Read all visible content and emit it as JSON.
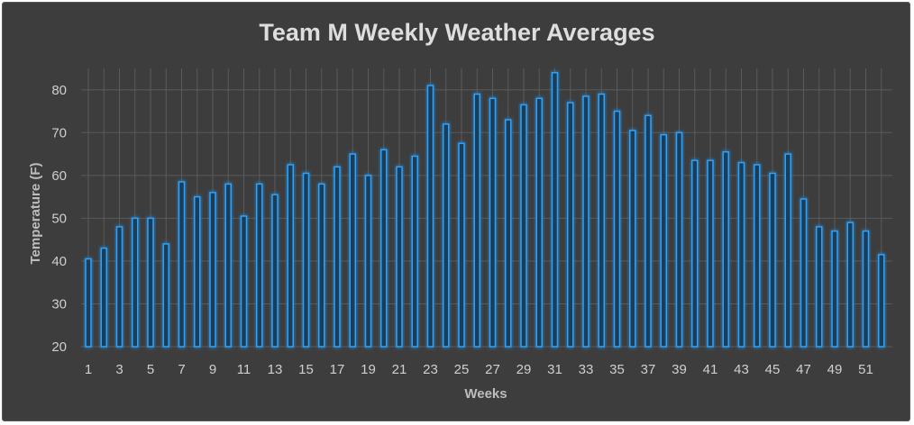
{
  "chart_data": {
    "type": "bar",
    "title": "Team M Weekly Weather Averages",
    "xlabel": "Weeks",
    "ylabel": "Temperature (F)",
    "ylim": [
      20,
      85
    ],
    "yticks": [
      20,
      30,
      40,
      50,
      60,
      70,
      80
    ],
    "x_tick_labels": [
      "1",
      "3",
      "5",
      "7",
      "9",
      "11",
      "13",
      "15",
      "17",
      "19",
      "21",
      "23",
      "25",
      "27",
      "29",
      "31",
      "33",
      "35",
      "37",
      "39",
      "41",
      "43",
      "45",
      "47",
      "49",
      "51"
    ],
    "categories": [
      1,
      2,
      3,
      4,
      5,
      6,
      7,
      8,
      9,
      10,
      11,
      12,
      13,
      14,
      15,
      16,
      17,
      18,
      19,
      20,
      21,
      22,
      23,
      24,
      25,
      26,
      27,
      28,
      29,
      30,
      31,
      32,
      33,
      34,
      35,
      36,
      37,
      38,
      39,
      40,
      41,
      42,
      43,
      44,
      45,
      46,
      47,
      48,
      49,
      50,
      51,
      52
    ],
    "values": [
      40.5,
      43,
      48,
      50,
      50,
      44,
      58.5,
      55,
      56,
      58,
      50.5,
      58,
      55.5,
      62.5,
      60.5,
      58,
      62,
      65,
      60,
      66,
      62,
      64.5,
      81,
      72,
      67.5,
      79,
      78,
      73,
      76.5,
      78,
      84,
      77,
      78.5,
      79,
      75,
      70.5,
      74,
      69.5,
      70,
      63.5,
      63.5,
      65.5,
      63,
      62.5,
      60.5,
      65,
      54.5,
      48,
      47,
      49,
      47,
      41.5
    ],
    "grid": true,
    "legend": "none",
    "colors": {
      "background": "#3d3d3d",
      "bar_stroke": "#2aa3ff",
      "bar_fill": "#1f3d55",
      "grid": "#5a5a5a"
    }
  }
}
